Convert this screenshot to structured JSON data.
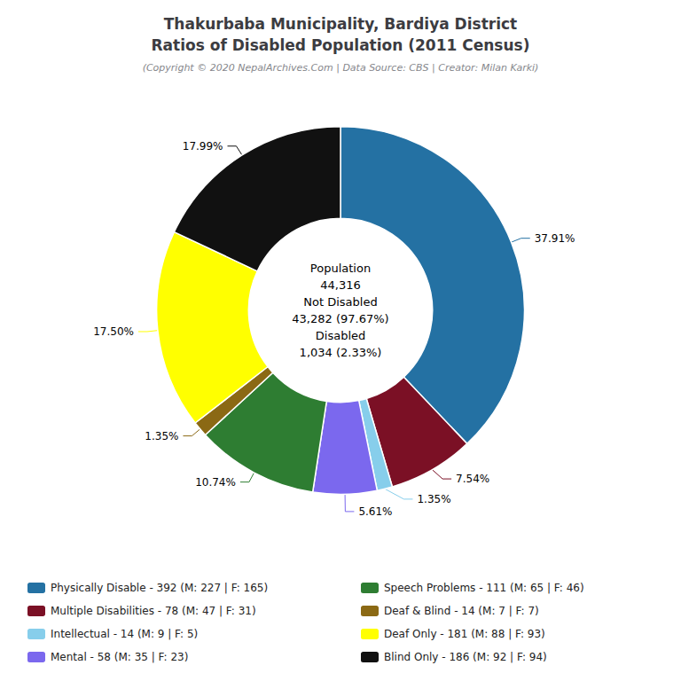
{
  "chart_data": {
    "type": "pie",
    "title": [
      "Thakurbaba Municipality, Bardiya District",
      "Ratios of Disabled Population (2011 Census)"
    ],
    "subtitle": "(Copyright © 2020 NepalArchives.Com | Data Source: CBS | Creator: Milan Karki)",
    "categories": [
      "Physically Disable - 392 (M: 227 | F: 165)",
      "Multiple Disabilities - 78 (M: 47 | F: 31)",
      "Intellectual - 14 (M: 9 | F: 5)",
      "Mental - 58 (M: 35 | F: 23)",
      "Speech Problems - 111 (M: 65 | F: 46)",
      "Deaf & Blind - 14 (M: 7 | F: 7)",
      "Deaf Only - 181 (M: 88 | F: 93)",
      "Blind Only - 186 (M: 92 | F: 94)"
    ],
    "values": [
      37.91,
      7.54,
      1.35,
      5.61,
      10.74,
      1.35,
      17.5,
      17.99
    ],
    "value_labels": [
      "37.91%",
      "7.54%",
      "1.35%",
      "5.61%",
      "10.74%",
      "1.35%",
      "17.50%",
      "17.99%"
    ],
    "colors": [
      "#2471a3",
      "#7b1025",
      "#87ceeb",
      "#7b68ee",
      "#2e7d32",
      "#8b6914",
      "#ffff00",
      "#111111"
    ],
    "data_labels": true,
    "legend": "bottom",
    "annotations": [
      "Population",
      "44,316",
      "Not Disabled",
      "43,282 (97.67%)",
      "Disabled",
      "1,034 (2.33%)"
    ]
  }
}
